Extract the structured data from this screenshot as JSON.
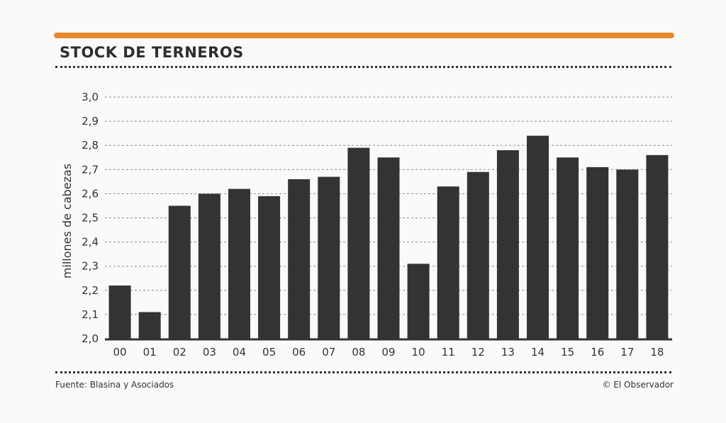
{
  "title": "STOCK DE TERNEROS",
  "footer": {
    "source": "Fuente: Blasina y Asociados",
    "credit": "© El Observador"
  },
  "colors": {
    "accent": "#e8892b",
    "bar": "#333333",
    "grid": "#8a8a8a",
    "text": "#333333"
  },
  "chart_data": {
    "type": "bar",
    "title": "STOCK DE TERNEROS",
    "xlabel": "",
    "ylabel": "millones de cabezas",
    "categories": [
      "00",
      "01",
      "02",
      "03",
      "04",
      "05",
      "06",
      "07",
      "08",
      "09",
      "10",
      "11",
      "12",
      "13",
      "14",
      "15",
      "16",
      "17",
      "18"
    ],
    "values": [
      2.22,
      2.11,
      2.55,
      2.6,
      2.62,
      2.59,
      2.66,
      2.67,
      2.79,
      2.75,
      2.31,
      2.63,
      2.69,
      2.78,
      2.84,
      2.75,
      2.71,
      2.7,
      2.76
    ],
    "ylim": [
      2.0,
      3.0
    ],
    "yticks": [
      "2,0",
      "2,1",
      "2,2",
      "2,3",
      "2,4",
      "2,5",
      "2,6",
      "2,7",
      "2,8",
      "2,9",
      "3,0"
    ],
    "grid": true,
    "legend": "none"
  }
}
